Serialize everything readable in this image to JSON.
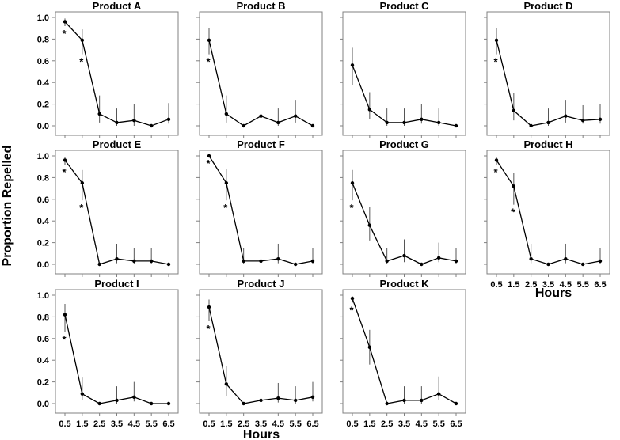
{
  "figure": {
    "ylabel": "Proportion Repelled",
    "xlabel_panel_h": "Hours",
    "xlabel_bottom": "Hours"
  },
  "chart_data": [
    {
      "type": "line",
      "title": "Product A",
      "x": [
        0.5,
        1.5,
        2.5,
        3.5,
        4.5,
        5.5,
        6.5
      ],
      "values": [
        0.96,
        0.79,
        0.11,
        0.03,
        0.05,
        0.0,
        0.06
      ],
      "err_low": [
        0.92,
        0.66,
        0.03,
        0.0,
        0.0,
        0.0,
        0.02
      ],
      "err_high": [
        0.99,
        0.89,
        0.28,
        0.16,
        0.2,
        0.0,
        0.21
      ],
      "significant": [
        true,
        true,
        false,
        false,
        false,
        false,
        false
      ],
      "ylim": [
        0,
        1
      ],
      "yticks": [
        0.0,
        0.2,
        0.4,
        0.6,
        0.8,
        1.0
      ],
      "xticks": [
        "0.5",
        "1.5",
        "2.5",
        "3.5",
        "4.5",
        "5.5",
        "6.5"
      ]
    },
    {
      "type": "line",
      "title": "Product B",
      "x": [
        0.5,
        1.5,
        2.5,
        3.5,
        4.5,
        5.5,
        6.5
      ],
      "values": [
        0.79,
        0.11,
        0.0,
        0.09,
        0.03,
        0.09,
        0.0
      ],
      "err_low": [
        0.66,
        0.03,
        0.0,
        0.03,
        0.0,
        0.03,
        0.0
      ],
      "err_high": [
        0.9,
        0.28,
        0.0,
        0.24,
        0.16,
        0.24,
        0.0
      ],
      "significant": [
        true,
        false,
        false,
        false,
        false,
        false,
        false
      ],
      "ylim": [
        0,
        1
      ],
      "yticks": [
        0.0,
        0.2,
        0.4,
        0.6,
        0.8,
        1.0
      ],
      "xticks": [
        "0.5",
        "1.5",
        "2.5",
        "3.5",
        "4.5",
        "5.5",
        "6.5"
      ]
    },
    {
      "type": "line",
      "title": "Product C",
      "x": [
        0.5,
        1.5,
        2.5,
        3.5,
        4.5,
        5.5,
        6.5
      ],
      "values": [
        0.56,
        0.15,
        0.03,
        0.03,
        0.06,
        0.03,
        0.0
      ],
      "err_low": [
        0.38,
        0.06,
        0.0,
        0.0,
        0.02,
        0.0,
        0.0
      ],
      "err_high": [
        0.72,
        0.31,
        0.16,
        0.16,
        0.2,
        0.16,
        0.0
      ],
      "significant": [
        false,
        false,
        false,
        false,
        false,
        false,
        false
      ],
      "ylim": [
        0,
        1
      ],
      "yticks": [
        0.0,
        0.2,
        0.4,
        0.6,
        0.8,
        1.0
      ],
      "xticks": [
        "0.5",
        "1.5",
        "2.5",
        "3.5",
        "4.5",
        "5.5",
        "6.5"
      ]
    },
    {
      "type": "line",
      "title": "Product D",
      "x": [
        0.5,
        1.5,
        2.5,
        3.5,
        4.5,
        5.5,
        6.5
      ],
      "values": [
        0.79,
        0.14,
        0.0,
        0.03,
        0.09,
        0.05,
        0.06
      ],
      "err_low": [
        0.66,
        0.05,
        0.0,
        0.0,
        0.03,
        0.02,
        0.02
      ],
      "err_high": [
        0.9,
        0.3,
        0.0,
        0.16,
        0.24,
        0.19,
        0.2
      ],
      "significant": [
        true,
        false,
        false,
        false,
        false,
        false,
        false
      ],
      "ylim": [
        0,
        1
      ],
      "yticks": [
        0.0,
        0.2,
        0.4,
        0.6,
        0.8,
        1.0
      ],
      "xticks": [
        "0.5",
        "1.5",
        "2.5",
        "3.5",
        "4.5",
        "5.5",
        "6.5"
      ]
    },
    {
      "type": "line",
      "title": "Product E",
      "x": [
        0.5,
        1.5,
        2.5,
        3.5,
        4.5,
        5.5,
        6.5
      ],
      "values": [
        0.96,
        0.75,
        0.0,
        0.05,
        0.03,
        0.03,
        0.0
      ],
      "err_low": [
        0.92,
        0.59,
        0.0,
        0.01,
        0.0,
        0.0,
        0.0
      ],
      "err_high": [
        0.99,
        0.87,
        0.0,
        0.19,
        0.15,
        0.15,
        0.0
      ],
      "significant": [
        true,
        true,
        false,
        false,
        false,
        false,
        false
      ],
      "ylim": [
        0,
        1
      ],
      "yticks": [
        0.0,
        0.2,
        0.4,
        0.6,
        0.8,
        1.0
      ],
      "xticks": [
        "0.5",
        "1.5",
        "2.5",
        "3.5",
        "4.5",
        "5.5",
        "6.5"
      ]
    },
    {
      "type": "line",
      "title": "Product F",
      "x": [
        0.5,
        1.5,
        2.5,
        3.5,
        4.5,
        5.5,
        6.5
      ],
      "values": [
        1.0,
        0.75,
        0.03,
        0.03,
        0.05,
        0.0,
        0.03
      ],
      "err_low": [
        1.0,
        0.59,
        0.0,
        0.0,
        0.01,
        0.0,
        0.0
      ],
      "err_high": [
        1.0,
        0.88,
        0.15,
        0.15,
        0.19,
        0.0,
        0.15
      ],
      "significant": [
        true,
        true,
        false,
        false,
        false,
        false,
        false
      ],
      "ylim": [
        0,
        1
      ],
      "yticks": [
        0.0,
        0.2,
        0.4,
        0.6,
        0.8,
        1.0
      ],
      "xticks": [
        "0.5",
        "1.5",
        "2.5",
        "3.5",
        "4.5",
        "5.5",
        "6.5"
      ]
    },
    {
      "type": "line",
      "title": "Product G",
      "x": [
        0.5,
        1.5,
        2.5,
        3.5,
        4.5,
        5.5,
        6.5
      ],
      "values": [
        0.75,
        0.36,
        0.03,
        0.08,
        0.0,
        0.06,
        0.03
      ],
      "err_low": [
        0.59,
        0.22,
        0.0,
        0.02,
        0.0,
        0.02,
        0.0
      ],
      "err_high": [
        0.87,
        0.53,
        0.15,
        0.23,
        0.0,
        0.2,
        0.15
      ],
      "significant": [
        true,
        false,
        false,
        false,
        false,
        false,
        false
      ],
      "ylim": [
        0,
        1
      ],
      "yticks": [
        0.0,
        0.2,
        0.4,
        0.6,
        0.8,
        1.0
      ],
      "xticks": [
        "0.5",
        "1.5",
        "2.5",
        "3.5",
        "4.5",
        "5.5",
        "6.5"
      ]
    },
    {
      "type": "line",
      "title": "Product H",
      "x": [
        0.5,
        1.5,
        2.5,
        3.5,
        4.5,
        5.5,
        6.5
      ],
      "values": [
        0.96,
        0.72,
        0.05,
        0.0,
        0.05,
        0.0,
        0.03
      ],
      "err_low": [
        0.92,
        0.55,
        0.01,
        0.0,
        0.01,
        0.0,
        0.0
      ],
      "err_high": [
        0.99,
        0.84,
        0.19,
        0.0,
        0.19,
        0.0,
        0.15
      ],
      "significant": [
        true,
        true,
        false,
        false,
        false,
        false,
        false
      ],
      "ylim": [
        0,
        1
      ],
      "yticks": [
        0.0,
        0.2,
        0.4,
        0.6,
        0.8,
        1.0
      ],
      "xticks": [
        "0.5",
        "1.5",
        "2.5",
        "3.5",
        "4.5",
        "5.5",
        "6.5"
      ]
    },
    {
      "type": "line",
      "title": "Product I",
      "x": [
        0.5,
        1.5,
        2.5,
        3.5,
        4.5,
        5.5,
        6.5
      ],
      "values": [
        0.82,
        0.09,
        0.0,
        0.03,
        0.06,
        0.0,
        0.0
      ],
      "err_low": [
        0.66,
        0.03,
        0.0,
        0.0,
        0.02,
        0.0,
        0.0
      ],
      "err_high": [
        0.92,
        0.24,
        0.0,
        0.16,
        0.2,
        0.0,
        0.0
      ],
      "significant": [
        true,
        false,
        false,
        false,
        false,
        false,
        false
      ],
      "ylim": [
        0,
        1
      ],
      "yticks": [
        0.0,
        0.2,
        0.4,
        0.6,
        0.8,
        1.0
      ],
      "xticks": [
        "0.5",
        "1.5",
        "2.5",
        "3.5",
        "4.5",
        "5.5",
        "6.5"
      ]
    },
    {
      "type": "line",
      "title": "Product J",
      "x": [
        0.5,
        1.5,
        2.5,
        3.5,
        4.5,
        5.5,
        6.5
      ],
      "values": [
        0.89,
        0.18,
        0.0,
        0.03,
        0.05,
        0.03,
        0.06
      ],
      "err_low": [
        0.76,
        0.07,
        0.0,
        0.0,
        0.01,
        0.0,
        0.02
      ],
      "err_high": [
        0.96,
        0.35,
        0.0,
        0.16,
        0.19,
        0.16,
        0.2
      ],
      "significant": [
        true,
        false,
        false,
        false,
        false,
        false,
        false
      ],
      "ylim": [
        0,
        1
      ],
      "yticks": [
        0.0,
        0.2,
        0.4,
        0.6,
        0.8,
        1.0
      ],
      "xticks": [
        "0.5",
        "1.5",
        "2.5",
        "3.5",
        "4.5",
        "5.5",
        "6.5"
      ]
    },
    {
      "type": "line",
      "title": "Product K",
      "x": [
        0.5,
        1.5,
        2.5,
        3.5,
        4.5,
        5.5,
        6.5
      ],
      "values": [
        0.97,
        0.52,
        0.0,
        0.03,
        0.03,
        0.09,
        0.0
      ],
      "err_low": [
        0.93,
        0.36,
        0.0,
        0.0,
        0.0,
        0.03,
        0.0
      ],
      "err_high": [
        0.99,
        0.68,
        0.0,
        0.16,
        0.16,
        0.25,
        0.0
      ],
      "significant": [
        true,
        false,
        false,
        false,
        false,
        false,
        false
      ],
      "ylim": [
        0,
        1
      ],
      "yticks": [
        0.0,
        0.2,
        0.4,
        0.6,
        0.8,
        1.0
      ],
      "xticks": [
        "0.5",
        "1.5",
        "2.5",
        "3.5",
        "4.5",
        "5.5",
        "6.5"
      ]
    }
  ]
}
